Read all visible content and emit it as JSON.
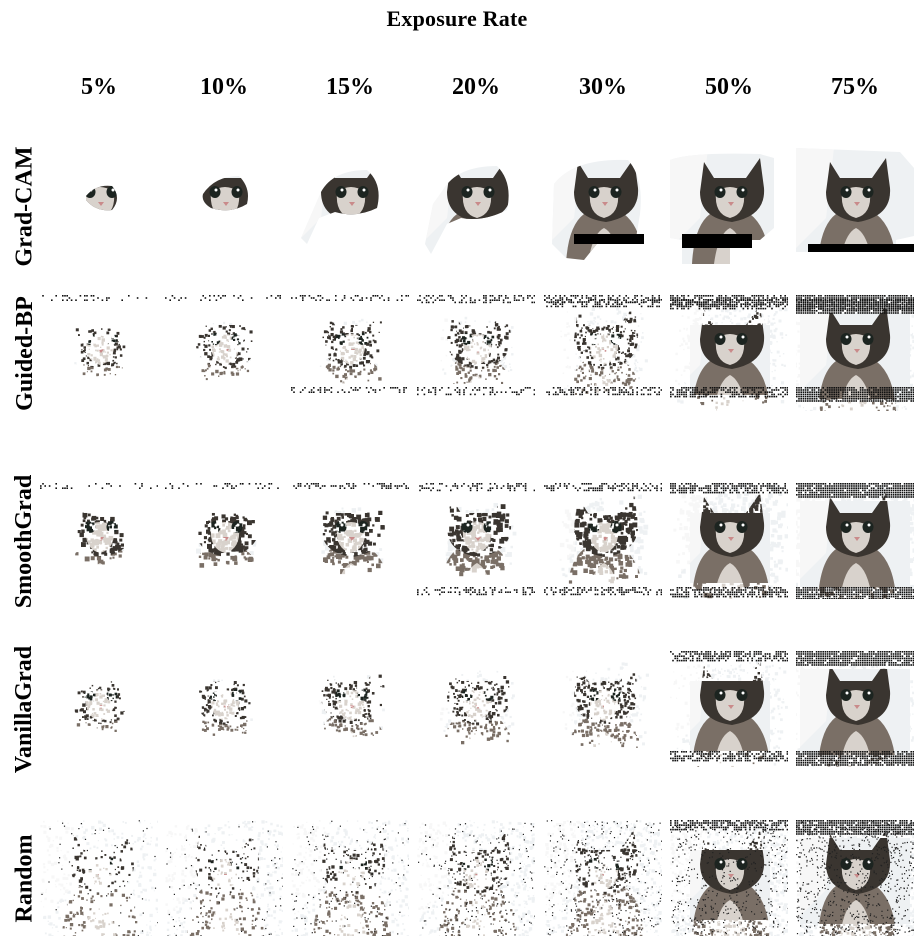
{
  "figure": {
    "title": "Exposure Rate",
    "exposure_rates": [
      "5%",
      "10%",
      "15%",
      "20%",
      "30%",
      "50%",
      "75%"
    ],
    "methods": [
      "Grad-CAM",
      "Guided-BP",
      "SmoothGrad",
      "VanillaGrad",
      "Random"
    ],
    "exposure_fractions": [
      0.05,
      0.1,
      0.15,
      0.2,
      0.3,
      0.5,
      0.75
    ],
    "image_subject": "kitten"
  },
  "colors": {
    "background": "#ffffff",
    "text": "#000000",
    "fur_dark": "#3a3530",
    "fur_mid": "#7a6f66",
    "fur_light": "#d8d2cc",
    "eye": "#1c2420",
    "nose": "#c98a8a",
    "wall": "#eef1f3",
    "mask": "#000000"
  }
}
